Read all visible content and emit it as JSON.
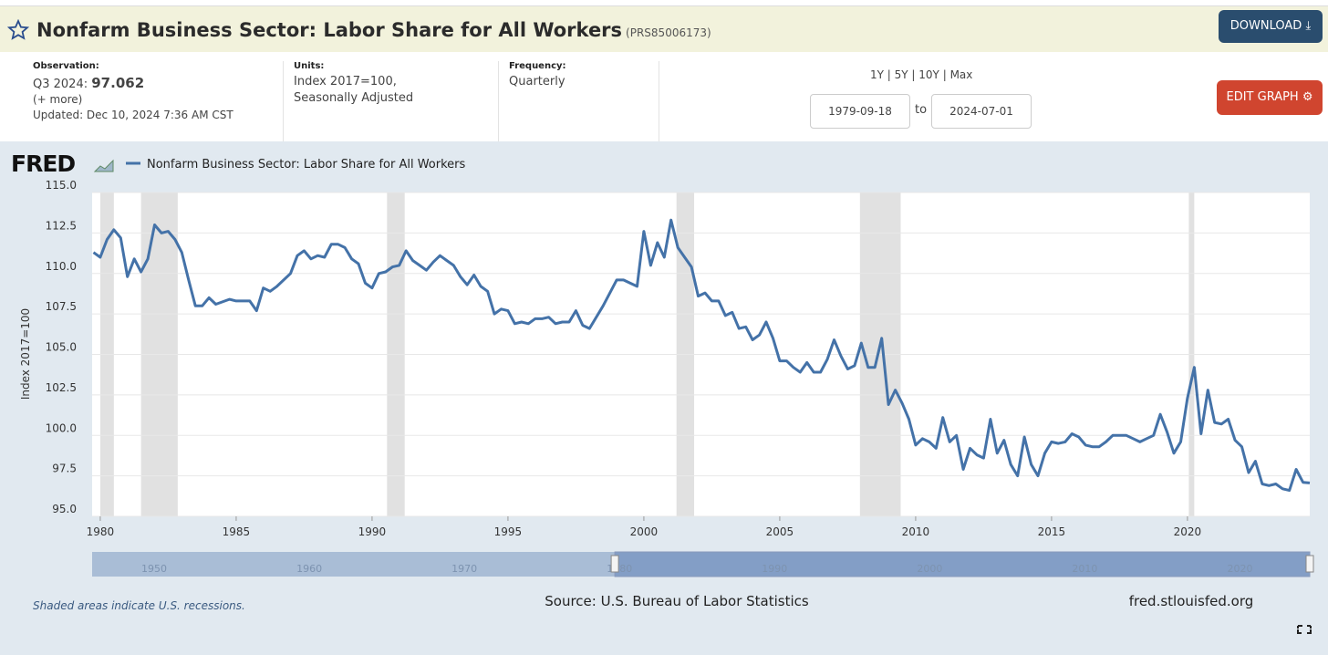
{
  "header": {
    "title": "Nonfarm Business Sector: Labor Share for All Workers",
    "series_id": "(PRS85006173)",
    "download": "DOWNLOAD"
  },
  "info": {
    "observation_label": "Observation:",
    "observation_period": "Q3 2024:",
    "observation_value": "97.062",
    "more": "(+ more)",
    "updated": "Updated: Dec 10, 2024 7:36 AM CST",
    "units_label": "Units:",
    "units": "Index 2017=100,",
    "units_2": "Seasonally Adjusted",
    "frequency_label": "Frequency:",
    "frequency": "Quarterly",
    "ranges": [
      "1Y",
      "5Y",
      "10Y",
      "Max"
    ],
    "start_date": "1979-09-18",
    "to": "to",
    "end_date": "2024-07-01",
    "edit": "EDIT GRAPH"
  },
  "chart_data": {
    "type": "line",
    "logo": "FRED",
    "ylabel": "Index 2017=100",
    "xlim": [
      1979.7,
      2024.5
    ],
    "xticks": [
      1980,
      1985,
      1990,
      1995,
      2000,
      2005,
      2010,
      2015,
      2020
    ],
    "ylim": [
      95,
      115
    ],
    "yticks": [
      {
        "value": 95,
        "label": "95.0"
      },
      {
        "value": 97.5,
        "label": "97.5"
      },
      {
        "value": 100,
        "label": "100.0"
      },
      {
        "value": 102.5,
        "label": "102.5"
      },
      {
        "value": 105,
        "label": "105.0"
      },
      {
        "value": 107.5,
        "label": "107.5"
      },
      {
        "value": 110,
        "label": "110.0"
      },
      {
        "value": 112.5,
        "label": "112.5"
      },
      {
        "value": 115,
        "label": "115.0"
      }
    ],
    "grid": true,
    "recessions": [
      [
        1980.0,
        1980.5
      ],
      [
        1981.5,
        1982.85
      ],
      [
        1990.55,
        1991.2
      ],
      [
        2001.2,
        2001.85
      ],
      [
        2007.95,
        2009.45
      ],
      [
        2020.05,
        2020.25
      ]
    ],
    "x": [
      1979.75,
      1980,
      1980.25,
      1980.5,
      1980.75,
      1981,
      1981.25,
      1981.5,
      1981.75,
      1982,
      1982.25,
      1982.5,
      1982.75,
      1983,
      1983.25,
      1983.5,
      1983.75,
      1984,
      1984.25,
      1984.75,
      1985,
      1985.5,
      1985.75,
      1986,
      1986.25,
      1986.5,
      1987,
      1987.25,
      1987.5,
      1987.75,
      1988,
      1988.25,
      1988.5,
      1988.75,
      1989,
      1989.25,
      1989.5,
      1989.75,
      1990,
      1990.25,
      1990.5,
      1990.75,
      1991,
      1991.25,
      1991.5,
      1991.75,
      1992,
      1992.25,
      1992.5,
      1992.75,
      1993,
      1993.25,
      1993.5,
      1993.75,
      1994,
      1994.25,
      1994.5,
      1994.75,
      1995,
      1995.25,
      1995.5,
      1995.75,
      1996,
      1996.25,
      1996.5,
      1996.75,
      1997,
      1997.25,
      1997.5,
      1997.75,
      1998,
      1998.5,
      1998.75,
      1999,
      1999.25,
      1999.5,
      1999.75,
      2000,
      2000.25,
      2000.5,
      2000.75,
      2001,
      2001.25,
      2001.5,
      2001.75,
      2002,
      2002.25,
      2002.5,
      2002.75,
      2003,
      2003.25,
      2003.5,
      2003.75,
      2004,
      2004.25,
      2004.5,
      2004.75,
      2005,
      2005.25,
      2005.5,
      2005.75,
      2006,
      2006.25,
      2006.5,
      2006.75,
      2007,
      2007.25,
      2007.5,
      2007.75,
      2008,
      2008.25,
      2008.5,
      2008.75,
      2009,
      2009.25,
      2009.5,
      2009.75,
      2010,
      2010.25,
      2010.5,
      2010.75,
      2011,
      2011.25,
      2011.5,
      2011.75,
      2012,
      2012.25,
      2012.5,
      2012.75,
      2013,
      2013.25,
      2013.5,
      2013.75,
      2014,
      2014.25,
      2014.5,
      2014.75,
      2015,
      2015.25,
      2015.5,
      2015.75,
      2016,
      2016.25,
      2016.5,
      2016.75,
      2017,
      2017.25,
      2017.5,
      2017.75,
      2018,
      2018.25,
      2018.5,
      2018.75,
      2019,
      2019.25,
      2019.5,
      2019.75,
      2020,
      2020.25,
      2020.5,
      2020.75,
      2021,
      2021.25,
      2021.5,
      2021.75,
      2022,
      2022.25,
      2022.5,
      2022.75,
      2023,
      2023.25,
      2023.5,
      2023.75,
      2024,
      2024.25,
      2024.5
    ],
    "series": [
      {
        "name": "Nonfarm Business Sector: Labor Share for All Workers",
        "color": "#4472a8",
        "values": [
          111.3,
          111.0,
          112.1,
          112.7,
          112.2,
          109.8,
          110.9,
          110.1,
          110.9,
          113.0,
          112.5,
          112.6,
          112.1,
          111.3,
          109.6,
          108.0,
          108.0,
          108.5,
          108.1,
          108.4,
          108.3,
          108.3,
          107.7,
          109.1,
          108.9,
          109.2,
          110.0,
          111.1,
          111.4,
          110.9,
          111.1,
          111.0,
          111.8,
          111.8,
          111.6,
          110.9,
          110.6,
          109.4,
          109.1,
          110.0,
          110.1,
          110.4,
          110.5,
          111.4,
          110.8,
          110.5,
          110.2,
          110.7,
          111.1,
          110.8,
          110.5,
          109.8,
          109.3,
          109.9,
          109.2,
          108.9,
          107.5,
          107.8,
          107.7,
          106.9,
          107.0,
          106.9,
          107.2,
          107.2,
          107.3,
          106.9,
          107.0,
          107.0,
          107.7,
          106.8,
          106.6,
          108.0,
          108.8,
          109.6,
          109.6,
          109.4,
          109.2,
          112.6,
          110.5,
          111.9,
          111.0,
          113.3,
          111.6,
          111.0,
          110.4,
          108.6,
          108.8,
          108.3,
          108.3,
          107.4,
          107.6,
          106.6,
          106.7,
          105.9,
          106.2,
          107.0,
          106.0,
          104.6,
          104.6,
          104.2,
          103.9,
          104.5,
          103.9,
          103.9,
          104.7,
          105.9,
          104.9,
          104.1,
          104.3,
          105.7,
          104.2,
          104.2,
          106.0,
          101.9,
          102.8,
          102.0,
          101.0,
          99.4,
          99.8,
          99.6,
          99.2,
          101.1,
          99.6,
          100.0,
          97.9,
          99.2,
          98.8,
          98.6,
          101.0,
          98.9,
          99.7,
          98.2,
          97.5,
          99.9,
          98.2,
          97.5,
          98.9,
          99.6,
          99.5,
          99.6,
          100.1,
          99.9,
          99.4,
          99.3,
          99.3,
          99.6,
          100.0,
          100.0,
          100.0,
          99.8,
          99.6,
          99.8,
          100.0,
          101.3,
          100.2,
          98.9,
          99.6,
          102.3,
          104.2,
          100.1,
          102.8,
          100.8,
          100.7,
          101.0,
          99.7,
          99.3,
          97.7,
          98.4,
          97.0,
          96.9,
          97.0,
          96.7,
          96.6,
          97.9,
          97.1,
          97.062
        ]
      }
    ],
    "navigator": {
      "xlim": [
        1946,
        2024.5
      ],
      "xticks": [
        1950,
        1960,
        1970,
        1980,
        1990,
        2000,
        2010,
        2020
      ]
    }
  },
  "footer": {
    "note": "Shaded areas indicate U.S. recessions.",
    "source": "Source: U.S. Bureau of Labor Statistics",
    "site": "fred.stlouisfed.org"
  }
}
